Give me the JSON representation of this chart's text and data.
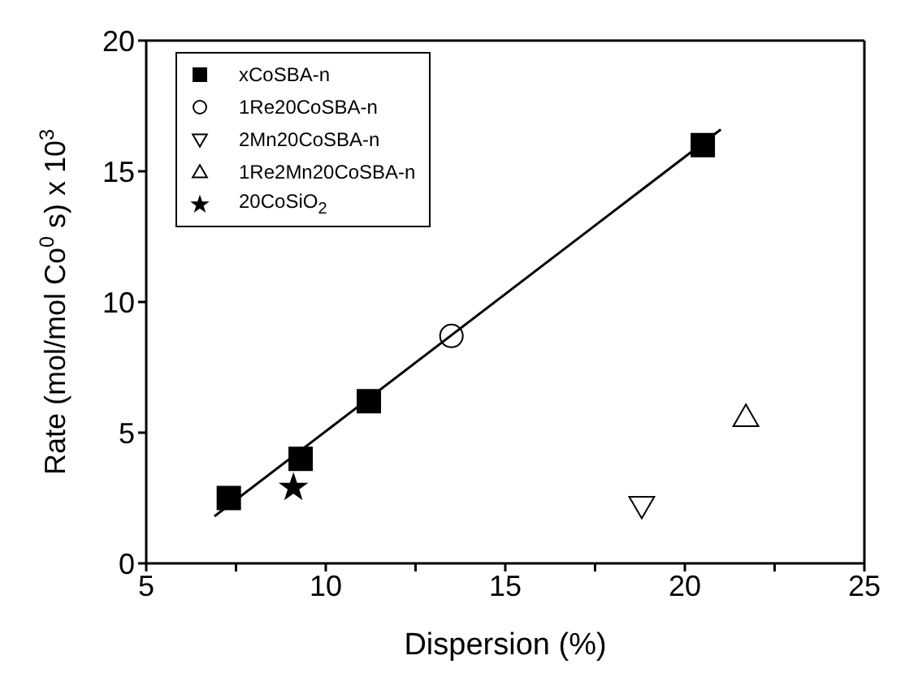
{
  "chart_data": {
    "type": "scatter",
    "xlabel": "Dispersion (%)",
    "ylabel": "Rate (mol/mol Co$^{0}$ s) x 10$^{3}$",
    "xlim": [
      5,
      25
    ],
    "ylim": [
      0,
      20
    ],
    "xticks": [
      5,
      {
        "value": 7.5,
        "label": null
      },
      10,
      {
        "value": 12.5,
        "label": null
      },
      15,
      {
        "value": 17.5,
        "label": null
      },
      20,
      {
        "value": 22.5,
        "label": null
      },
      25
    ],
    "yticks": [
      0,
      5,
      10,
      15,
      20
    ],
    "legend": "top left",
    "series": [
      {
        "name": "xCoSBA-n",
        "color": "#000000",
        "marker": "square",
        "x": [
          7.3,
          9.3,
          11.2,
          20.5
        ],
        "values": [
          2.5,
          4.0,
          6.2,
          16.0
        ]
      },
      {
        "name": "1Re20CoSBA-n",
        "color": "#000000",
        "marker": "circle",
        "x": [
          13.5
        ],
        "values": [
          8.7
        ]
      },
      {
        "name": "2Mn20CoSBA-n",
        "color": "#000000",
        "marker": "triangle-down",
        "x": [
          18.8
        ],
        "values": [
          2.2
        ]
      },
      {
        "name": "1Re2Mn20CoSBA-n",
        "color": "#000000",
        "marker": "triangle",
        "x": [
          21.7
        ],
        "values": [
          5.6
        ]
      },
      {
        "name": "20CoSiO$_{2}$",
        "color": "#000000",
        "marker": "star",
        "x": [
          9.1
        ],
        "values": [
          2.9
        ]
      },
      {
        "type": "line",
        "color": "#000000",
        "line_style": "solid",
        "marker": "none",
        "x": [
          6.9,
          21.0
        ],
        "values": [
          1.8,
          16.6
        ]
      }
    ]
  }
}
